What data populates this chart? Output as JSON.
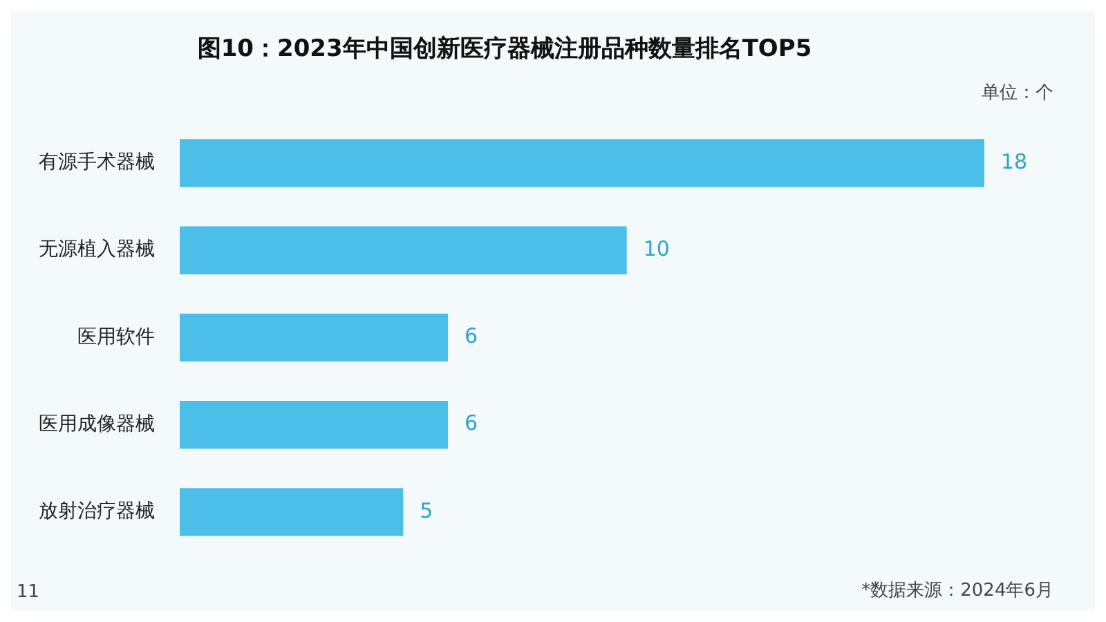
{
  "chart_data": {
    "type": "bar",
    "orientation": "horizontal",
    "title": "图10：2023年中国创新医疗器械注册品种数量排名TOP5",
    "categories": [
      "有源手术器械",
      "无源植入器械",
      "医用软件",
      "医用成像器械",
      "放射治疗器械"
    ],
    "values": [
      18,
      10,
      6,
      6,
      5
    ],
    "color": "#4bbfe8",
    "data_labels": true,
    "legend": false,
    "annotations": [
      "单位：个",
      "*数据来源：2024年6月",
      "11"
    ]
  }
}
